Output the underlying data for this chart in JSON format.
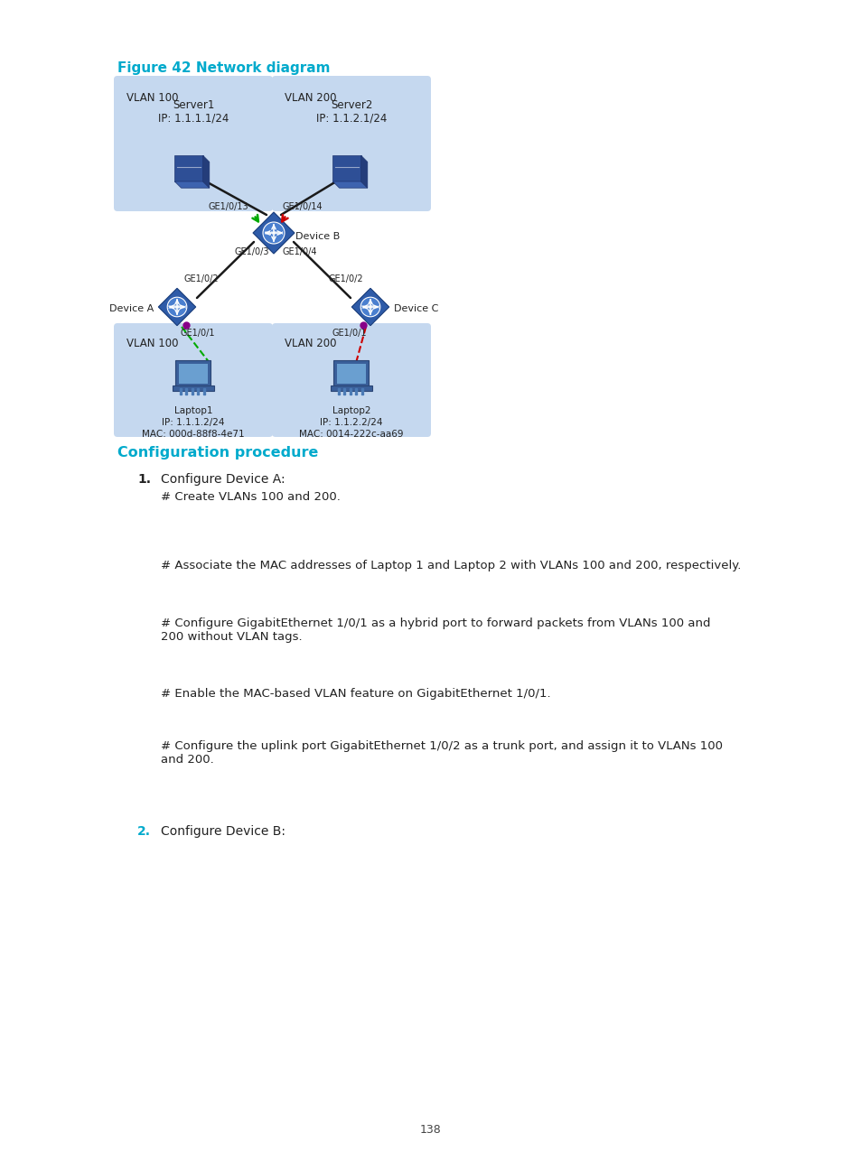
{
  "figure_title": "Figure 42 Network diagram",
  "figure_title_color": "#00aacc",
  "figure_title_fontsize": 11,
  "section_title": "Configuration procedure",
  "section_title_color": "#00aacc",
  "section_title_fontsize": 11.5,
  "body_fontsize": 10,
  "body_color": "#222222",
  "code_fontsize": 9.5,
  "page_number": "138",
  "background_color": "#ffffff",
  "step1_label": "1.",
  "step1_text": "Configure Device A:",
  "step1_sub": [
    "# Create VLANs 100 and 200.",
    "# Associate the MAC addresses of Laptop 1 and Laptop 2 with VLANs 100 and 200, respectively.",
    "# Configure GigabitEthernet 1/0/1 as a hybrid port to forward packets from VLANs 100 and\n200 without VLAN tags.",
    "# Enable the MAC-based VLAN feature on GigabitEthernet 1/0/1.",
    "# Configure the uplink port GigabitEthernet 1/0/2 as a trunk port, and assign it to VLANs 100\nand 200."
  ],
  "step2_label": "2.",
  "step2_text": "Configure Device B:",
  "vlan100_left_label": "VLAN 100",
  "vlan200_top_label": "VLAN 200",
  "server1_label": "Server1\nIP: 1.1.1.1/24",
  "server2_label": "Server2\nIP: 1.1.2.1/24",
  "deviceB_label": "Device B",
  "deviceA_label": "Device A",
  "deviceC_label": "Device C",
  "vlan100_bot_label": "VLAN 100",
  "vlan200_bot_label": "VLAN 200",
  "laptop1_label": "Laptop1\nIP: 1.1.1.2/24\nMAC: 000d-88f8-4e71",
  "laptop2_label": "Laptop2\nIP: 1.1.2.2/24\nMAC: 0014-222c-aa69",
  "ge_labels": {
    "B_to_A_top": "GE1/0/13",
    "B_to_A_bot": "GE1/0/3",
    "B_to_C_top": "GE1/0/14",
    "B_to_C_bot": "GE1/0/4",
    "A_to_B": "GE1/0/2",
    "A_to_L1": "GE1/0/1",
    "C_to_B": "GE1/0/2",
    "C_to_L2": "GE1/0/1"
  },
  "box_color_light": "#c5d8ef",
  "line_color_black": "#1a1a1a",
  "line_color_green": "#00aa00",
  "line_color_red": "#cc0000"
}
